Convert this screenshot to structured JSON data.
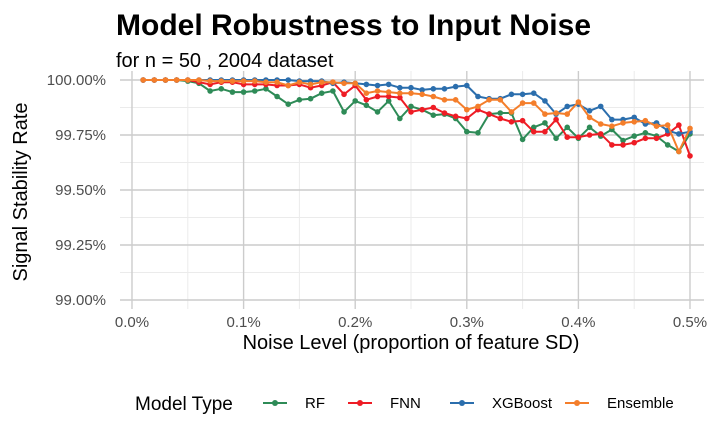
{
  "chart_data": {
    "type": "line",
    "title": "Model Robustness to Input Noise",
    "subtitle": "for n = 50 , 2004 dataset",
    "xlabel": "Noise Level (proportion of feature SD)",
    "ylabel": "Signal Stability Rate",
    "xlim": [
      0,
      0.005
    ],
    "ylim": [
      0.99,
      1.0
    ],
    "x_ticks": [
      0,
      0.001,
      0.002,
      0.003,
      0.004,
      0.005
    ],
    "x_tick_labels": [
      "0.0%",
      "0.1%",
      "0.2%",
      "0.3%",
      "0.4%",
      "0.5%"
    ],
    "y_ticks": [
      0.99,
      0.9925,
      0.995,
      0.9975,
      1.0
    ],
    "y_tick_labels": [
      "99.00%",
      "99.25%",
      "99.50%",
      "99.75%",
      "100.00%"
    ],
    "grid": true,
    "legend_title": "Model Type",
    "legend_position": "bottom",
    "x": [
      0.0001,
      0.0002,
      0.0003,
      0.0004,
      0.0005,
      0.0006,
      0.0007,
      0.0008,
      0.0009,
      0.001,
      0.0011,
      0.0012,
      0.0013,
      0.0014,
      0.0015,
      0.0016,
      0.0017,
      0.0018,
      0.0019,
      0.002,
      0.0021,
      0.0022,
      0.0023,
      0.0024,
      0.0025,
      0.0026,
      0.0027,
      0.0028,
      0.0029,
      0.003,
      0.0031,
      0.0032,
      0.0033,
      0.0034,
      0.0035,
      0.0036,
      0.0037,
      0.0038,
      0.0039,
      0.004,
      0.0041,
      0.0042,
      0.0043,
      0.0044,
      0.0045,
      0.0046,
      0.0047,
      0.0048,
      0.0049,
      0.005
    ],
    "series": [
      {
        "name": "RF",
        "color": "#2e8b57",
        "values": [
          1.0,
          1.0,
          1.0,
          1.0,
          0.99995,
          0.99985,
          0.9995,
          0.9996,
          0.99945,
          0.99945,
          0.9995,
          0.9996,
          0.99925,
          0.9989,
          0.9991,
          0.99915,
          0.9994,
          0.9995,
          0.99855,
          0.99905,
          0.99885,
          0.99855,
          0.99905,
          0.99825,
          0.9988,
          0.99865,
          0.9984,
          0.99845,
          0.99825,
          0.99765,
          0.9976,
          0.99845,
          0.9985,
          0.9985,
          0.9973,
          0.99785,
          0.99805,
          0.99735,
          0.99785,
          0.99735,
          0.99785,
          0.99745,
          0.99775,
          0.99725,
          0.99745,
          0.9976,
          0.99745,
          0.99705,
          0.99675,
          0.99755
        ]
      },
      {
        "name": "FNN",
        "color": "#ee1c25",
        "values": [
          1.0,
          1.0,
          1.0,
          1.0,
          1.0,
          0.9999,
          0.9998,
          0.9999,
          0.9999,
          0.9998,
          0.9998,
          0.9998,
          0.99975,
          0.99975,
          0.9998,
          0.99965,
          0.99975,
          0.9999,
          0.99935,
          0.99975,
          0.9991,
          0.99925,
          0.99925,
          0.9992,
          0.99855,
          0.99865,
          0.99875,
          0.9985,
          0.99835,
          0.99825,
          0.99865,
          0.99845,
          0.99825,
          0.9981,
          0.99815,
          0.99765,
          0.99765,
          0.9982,
          0.9974,
          0.9974,
          0.9975,
          0.99755,
          0.99705,
          0.99705,
          0.99715,
          0.99735,
          0.99735,
          0.99755,
          0.99795,
          0.99655
        ]
      },
      {
        "name": "XGBoost",
        "color": "#2b6ead",
        "values": [
          1.0,
          1.0,
          1.0,
          1.0,
          1.0,
          1.0,
          1.0,
          1.0,
          1.0,
          1.0,
          1.0,
          1.0,
          1.0,
          1.0,
          0.99995,
          0.99995,
          0.99995,
          0.99985,
          0.9999,
          0.99985,
          0.9998,
          0.99975,
          0.9998,
          0.99965,
          0.99965,
          0.99955,
          0.9996,
          0.9996,
          0.9997,
          0.99975,
          0.99925,
          0.99915,
          0.99915,
          0.99935,
          0.99935,
          0.9994,
          0.99905,
          0.99845,
          0.9988,
          0.9989,
          0.9986,
          0.9988,
          0.9982,
          0.9982,
          0.9983,
          0.998,
          0.99805,
          0.9977,
          0.99755,
          0.99765
        ]
      },
      {
        "name": "Ensemble",
        "color": "#f47e2b",
        "values": [
          1.0,
          1.0,
          1.0,
          1.0,
          1.0,
          1.0,
          0.99995,
          0.99995,
          0.99995,
          0.99995,
          0.99995,
          0.9999,
          0.9999,
          0.99975,
          0.9999,
          0.9998,
          0.9999,
          0.9999,
          0.99985,
          0.99985,
          0.9994,
          0.9995,
          0.99945,
          0.9994,
          0.9994,
          0.99935,
          0.99925,
          0.9991,
          0.9991,
          0.99865,
          0.9988,
          0.9991,
          0.9991,
          0.99855,
          0.99895,
          0.99895,
          0.99845,
          0.9985,
          0.99845,
          0.999,
          0.9983,
          0.998,
          0.9979,
          0.99805,
          0.9981,
          0.99815,
          0.9979,
          0.99795,
          0.99675,
          0.9978
        ]
      }
    ]
  }
}
